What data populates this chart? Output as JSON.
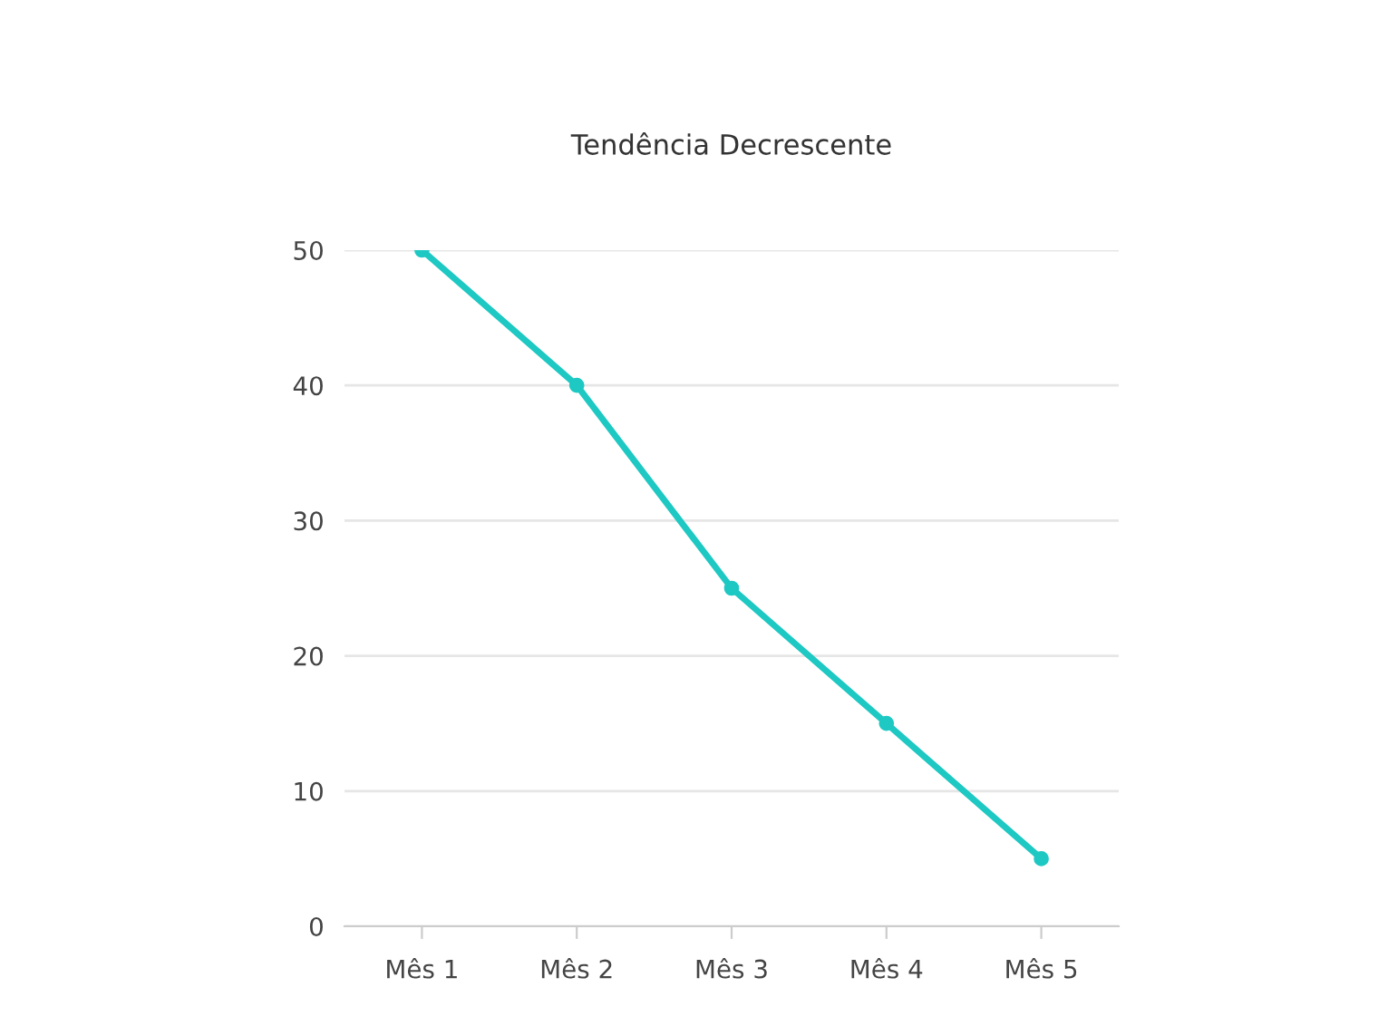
{
  "chart_data": {
    "type": "line",
    "title": "Tendência Decrescente",
    "categories": [
      "Mês 1",
      "Mês 2",
      "Mês 3",
      "Mês 4",
      "Mês 5"
    ],
    "series": [
      {
        "color": "#1ec8c3",
        "values": [
          50,
          40,
          25,
          15,
          5
        ]
      }
    ],
    "ylim": [
      0,
      50
    ],
    "yticks": [
      0,
      10,
      20,
      30,
      40,
      50
    ],
    "grid": "y",
    "legend": false,
    "marker": "circle",
    "line_style": "solid"
  }
}
